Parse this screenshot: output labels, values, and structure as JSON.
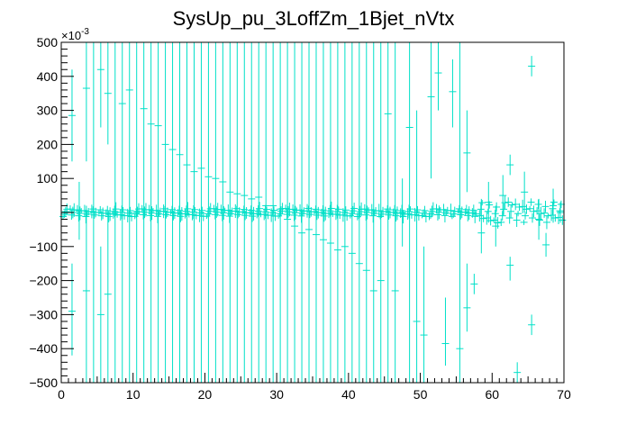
{
  "chart_data": {
    "type": "scatter",
    "title": "SysUp_pu_3LoffZm_1Bjet_nVtx",
    "xlabel": "",
    "ylabel": "",
    "y_multiplier_label": "×10",
    "y_multiplier_exponent": "-3",
    "xlim": [
      0,
      70
    ],
    "ylim": [
      -500,
      500
    ],
    "x_ticks": [
      "0",
      "10",
      "20",
      "30",
      "40",
      "50",
      "60",
      "70"
    ],
    "y_ticks": [
      {
        "value": 500,
        "label": "500"
      },
      {
        "value": 400,
        "label": "400"
      },
      {
        "value": 300,
        "label": "300"
      },
      {
        "value": 200,
        "label": "200"
      },
      {
        "value": 100,
        "label": "100"
      },
      {
        "value": -100,
        "label": "−100"
      },
      {
        "value": -200,
        "label": "−200"
      },
      {
        "value": -300,
        "label": "−300"
      },
      {
        "value": -400,
        "label": "−400"
      },
      {
        "value": -500,
        "label": "−500"
      }
    ],
    "grid": false,
    "marker_color": "#00e0c8",
    "series": [
      {
        "values": [
          {
            "x": 1.5,
            "y": 285,
            "ylo": 150,
            "yhi": 420
          },
          {
            "x": 1.5,
            "y": -290,
            "ylo": -420,
            "yhi": -150
          },
          {
            "x": 2.5,
            "y": 5,
            "ylo": -80,
            "yhi": 90
          },
          {
            "x": 3.5,
            "y": 365,
            "ylo": 150,
            "yhi": 500
          },
          {
            "x": 3.5,
            "y": -230,
            "ylo": -500,
            "yhi": 20
          },
          {
            "x": 4.5,
            "y": 0,
            "ylo": -500,
            "yhi": 500
          },
          {
            "x": 5.5,
            "y": 420,
            "ylo": 250,
            "yhi": 500
          },
          {
            "x": 5.5,
            "y": -300,
            "ylo": -500,
            "yhi": -100
          },
          {
            "x": 6.5,
            "y": 350,
            "ylo": 200,
            "yhi": 500
          },
          {
            "x": 6.5,
            "y": -240,
            "ylo": -500,
            "yhi": 0
          },
          {
            "x": 7.5,
            "y": 0,
            "ylo": -500,
            "yhi": 500
          },
          {
            "x": 8.5,
            "y": 320,
            "ylo": -500,
            "yhi": 500
          },
          {
            "x": 9.5,
            "y": 360,
            "ylo": -500,
            "yhi": 500
          },
          {
            "x": 10.5,
            "y": 0,
            "ylo": -500,
            "yhi": 500
          },
          {
            "x": 11.5,
            "y": 305,
            "ylo": -500,
            "yhi": 500
          },
          {
            "x": 12.5,
            "y": 260,
            "ylo": -500,
            "yhi": 500
          },
          {
            "x": 13.5,
            "y": 255,
            "ylo": -500,
            "yhi": 500
          },
          {
            "x": 14.5,
            "y": 200,
            "ylo": -500,
            "yhi": 500
          },
          {
            "x": 15.5,
            "y": 185,
            "ylo": -500,
            "yhi": 500
          },
          {
            "x": 16.5,
            "y": 170,
            "ylo": -500,
            "yhi": 500
          },
          {
            "x": 17.5,
            "y": 140,
            "ylo": -500,
            "yhi": 500
          },
          {
            "x": 18.5,
            "y": 120,
            "ylo": -500,
            "yhi": 500
          },
          {
            "x": 19.5,
            "y": 130,
            "ylo": -500,
            "yhi": 500
          },
          {
            "x": 20.5,
            "y": 105,
            "ylo": -500,
            "yhi": 500
          },
          {
            "x": 21.5,
            "y": 100,
            "ylo": -500,
            "yhi": 500
          },
          {
            "x": 22.5,
            "y": 90,
            "ylo": -500,
            "yhi": 500
          },
          {
            "x": 23.5,
            "y": 60,
            "ylo": -500,
            "yhi": 500
          },
          {
            "x": 24.5,
            "y": 55,
            "ylo": -500,
            "yhi": 500
          },
          {
            "x": 25.5,
            "y": 50,
            "ylo": -500,
            "yhi": 500
          },
          {
            "x": 26.5,
            "y": 40,
            "ylo": -500,
            "yhi": 500
          },
          {
            "x": 27.5,
            "y": 45,
            "ylo": -500,
            "yhi": 500
          },
          {
            "x": 28.5,
            "y": 20,
            "ylo": -500,
            "yhi": 500
          },
          {
            "x": 29.5,
            "y": 20,
            "ylo": -500,
            "yhi": 500
          },
          {
            "x": 30.5,
            "y": 10,
            "ylo": -500,
            "yhi": 500
          },
          {
            "x": 31.5,
            "y": -20,
            "ylo": -500,
            "yhi": 500
          },
          {
            "x": 32.5,
            "y": -40,
            "ylo": -500,
            "yhi": 500
          },
          {
            "x": 33.5,
            "y": -60,
            "ylo": -500,
            "yhi": 500
          },
          {
            "x": 34.5,
            "y": -50,
            "ylo": -500,
            "yhi": 500
          },
          {
            "x": 35.5,
            "y": -65,
            "ylo": -500,
            "yhi": 500
          },
          {
            "x": 36.5,
            "y": -80,
            "ylo": -500,
            "yhi": 500
          },
          {
            "x": 37.5,
            "y": -90,
            "ylo": -500,
            "yhi": 500
          },
          {
            "x": 38.5,
            "y": -110,
            "ylo": -500,
            "yhi": 500
          },
          {
            "x": 39.5,
            "y": -100,
            "ylo": -500,
            "yhi": 500
          },
          {
            "x": 40.5,
            "y": -120,
            "ylo": -500,
            "yhi": 500
          },
          {
            "x": 41.5,
            "y": -150,
            "ylo": -500,
            "yhi": 500
          },
          {
            "x": 42.5,
            "y": -170,
            "ylo": -500,
            "yhi": 500
          },
          {
            "x": 43.5,
            "y": -230,
            "ylo": -500,
            "yhi": 500
          },
          {
            "x": 44.5,
            "y": -200,
            "ylo": -500,
            "yhi": 500
          },
          {
            "x": 45.5,
            "y": 290,
            "ylo": -500,
            "yhi": 500
          },
          {
            "x": 46.5,
            "y": -230,
            "ylo": -500,
            "yhi": 500
          },
          {
            "x": 47.5,
            "y": 0,
            "ylo": -100,
            "yhi": 100
          },
          {
            "x": 48.5,
            "y": 250,
            "ylo": -500,
            "yhi": 500
          },
          {
            "x": 49.5,
            "y": -320,
            "ylo": -500,
            "yhi": 300
          },
          {
            "x": 50.5,
            "y": -360,
            "ylo": -500,
            "yhi": -100
          },
          {
            "x": 51.5,
            "y": 340,
            "ylo": 100,
            "yhi": 500
          },
          {
            "x": 52.5,
            "y": 410,
            "ylo": 300,
            "yhi": 500
          },
          {
            "x": 53.5,
            "y": -385,
            "ylo": -450,
            "yhi": -250
          },
          {
            "x": 54.5,
            "y": 355,
            "ylo": 250,
            "yhi": 450
          },
          {
            "x": 55.5,
            "y": -400,
            "ylo": -500,
            "yhi": 500
          },
          {
            "x": 56.5,
            "y": 175,
            "ylo": 60,
            "yhi": 300
          },
          {
            "x": 56.5,
            "y": -280,
            "ylo": -350,
            "yhi": -150
          },
          {
            "x": 57.5,
            "y": -210,
            "ylo": -240,
            "yhi": -180
          },
          {
            "x": 58.5,
            "y": -60,
            "ylo": -120,
            "yhi": 40
          },
          {
            "x": 59.5,
            "y": 30,
            "ylo": -30,
            "yhi": 90
          },
          {
            "x": 60.5,
            "y": -40,
            "ylo": -100,
            "yhi": 20
          },
          {
            "x": 61.5,
            "y": 50,
            "ylo": -10,
            "yhi": 110
          },
          {
            "x": 62.5,
            "y": 140,
            "ylo": 110,
            "yhi": 170
          },
          {
            "x": 62.5,
            "y": -155,
            "ylo": -200,
            "yhi": -130
          },
          {
            "x": 63.5,
            "y": -470,
            "ylo": -500,
            "yhi": -440
          },
          {
            "x": 64.5,
            "y": 60,
            "ylo": 0,
            "yhi": 120
          },
          {
            "x": 65.5,
            "y": 430,
            "ylo": 400,
            "yhi": 460
          },
          {
            "x": 65.5,
            "y": -330,
            "ylo": -360,
            "yhi": -300
          },
          {
            "x": 66.5,
            "y": -20,
            "ylo": -80,
            "yhi": 40
          },
          {
            "x": 67.5,
            "y": -95,
            "ylo": -130,
            "yhi": -60
          },
          {
            "x": 68.5,
            "y": 20,
            "ylo": -30,
            "yhi": 70
          },
          {
            "x": 69.5,
            "y": 0,
            "ylo": -30,
            "yhi": 30
          }
        ]
      }
    ]
  }
}
